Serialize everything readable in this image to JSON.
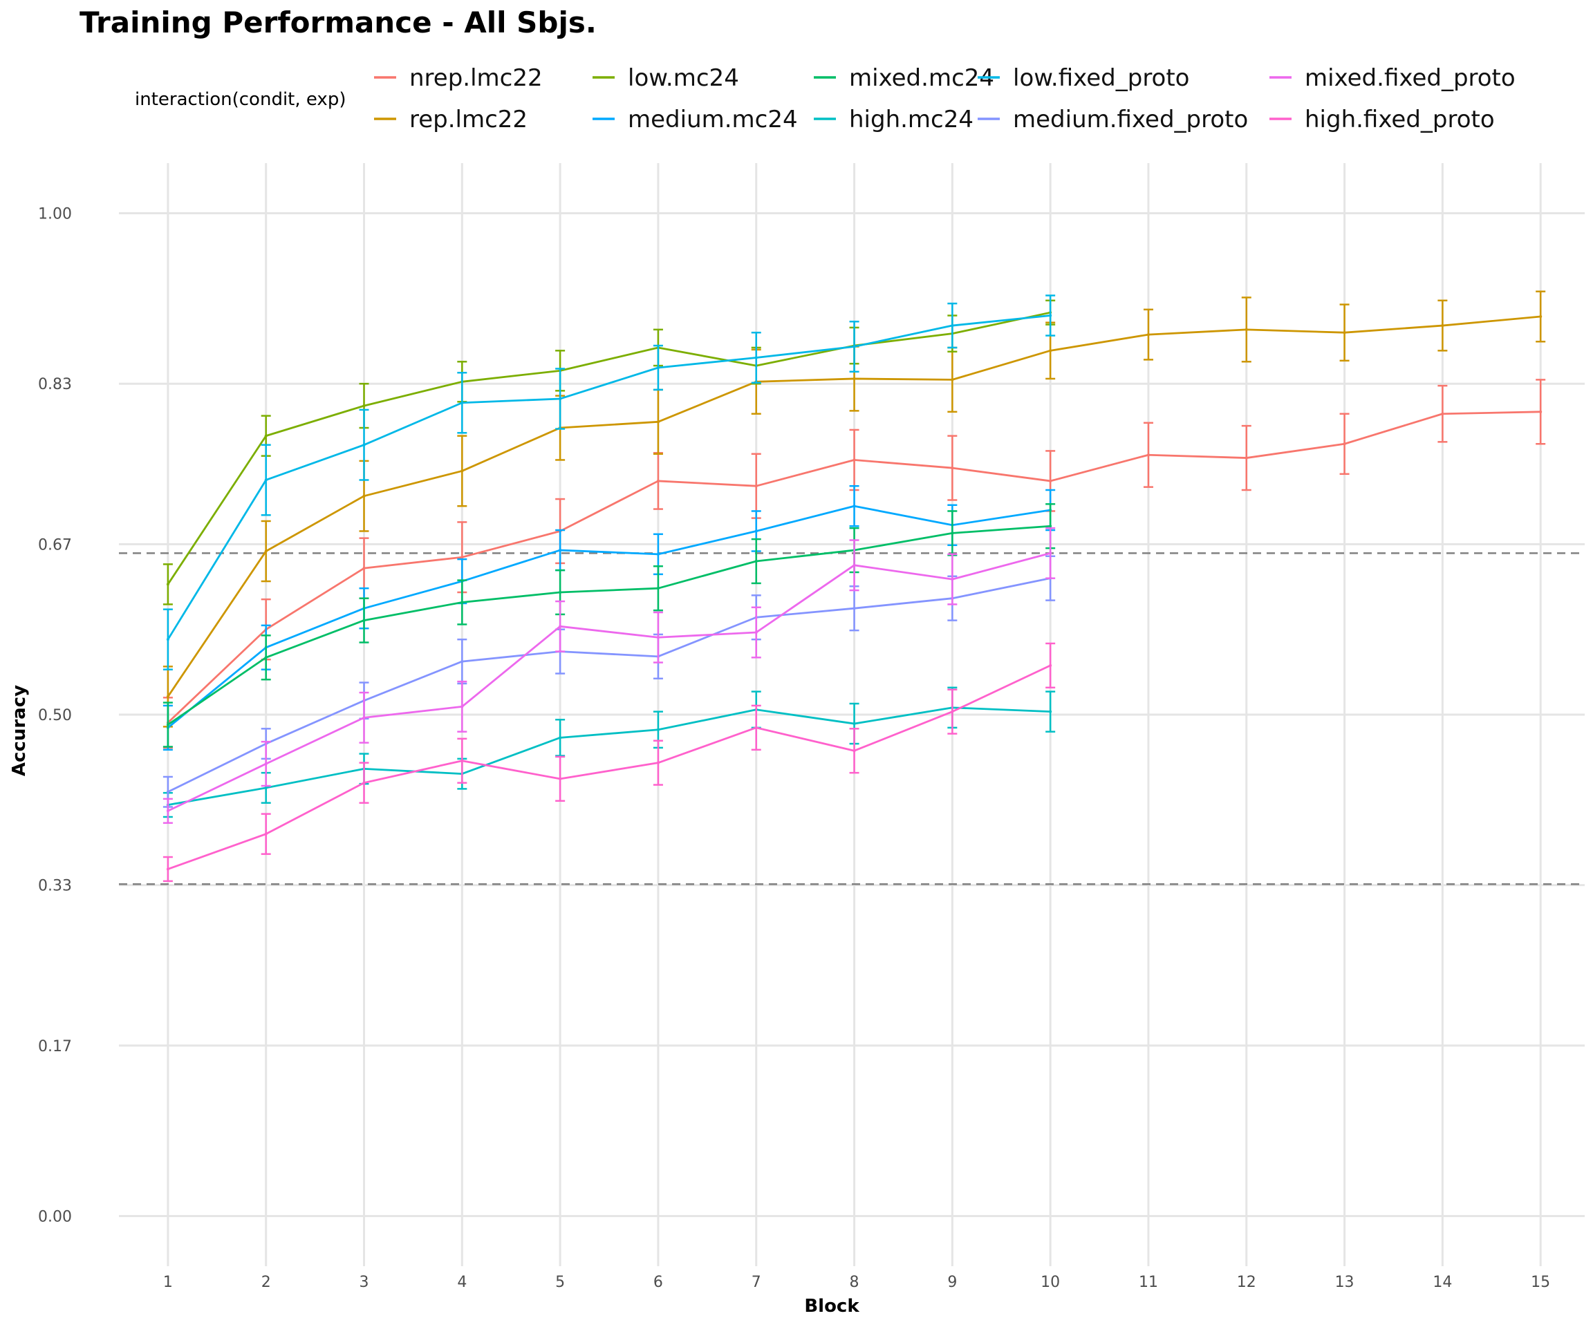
{
  "chart_data": {
    "type": "line",
    "title": "Training Performance - All Sbjs.",
    "xlabel": "Block",
    "ylabel": "Accuracy",
    "xlim": [
      0.5,
      15.45
    ],
    "ylim": [
      -0.05,
      1.05
    ],
    "x_ticks": [
      1,
      2,
      3,
      4,
      5,
      6,
      7,
      8,
      9,
      10,
      11,
      12,
      13,
      14,
      15
    ],
    "y_ticks": [
      0.0,
      0.17,
      0.33,
      0.5,
      0.67,
      0.83,
      1.0
    ],
    "y_tick_labels": [
      "0.00",
      "0.17",
      "0.33",
      "0.50",
      "0.67",
      "0.83",
      "1.00"
    ],
    "reference_lines": [
      0.661,
      0.331
    ],
    "grid": true,
    "legend": {
      "title": "interaction(condit, exp)",
      "position": "top"
    },
    "series": [
      {
        "name": "nrep.lmc22",
        "color": "#F8766D",
        "x": [
          1,
          2,
          3,
          4,
          5,
          6,
          7,
          8,
          9,
          10,
          11,
          12,
          13,
          14,
          15
        ],
        "y": [
          0.492,
          0.585,
          0.646,
          0.657,
          0.683,
          0.733,
          0.728,
          0.754,
          0.746,
          0.733,
          0.759,
          0.756,
          0.77,
          0.8,
          0.802
        ],
        "err": [
          0.025,
          0.03,
          0.03,
          0.035,
          0.032,
          0.028,
          0.032,
          0.03,
          0.032,
          0.03,
          0.032,
          0.032,
          0.03,
          0.028,
          0.032
        ]
      },
      {
        "name": "rep.lmc22",
        "color": "#CD9600",
        "x": [
          1,
          2,
          3,
          4,
          5,
          6,
          7,
          8,
          9,
          10,
          11,
          12,
          13,
          14,
          15
        ],
        "y": [
          0.518,
          0.663,
          0.718,
          0.743,
          0.786,
          0.792,
          0.832,
          0.835,
          0.834,
          0.863,
          0.879,
          0.884,
          0.881,
          0.888,
          0.897
        ],
        "err": [
          0.03,
          0.03,
          0.035,
          0.035,
          0.032,
          0.032,
          0.032,
          0.032,
          0.032,
          0.028,
          0.025,
          0.032,
          0.028,
          0.025,
          0.025
        ]
      },
      {
        "name": "low.mc24",
        "color": "#7CAE00",
        "x": [
          1,
          2,
          3,
          4,
          5,
          6,
          7,
          8,
          9,
          10
        ],
        "y": [
          0.63,
          0.778,
          0.808,
          0.832,
          0.843,
          0.866,
          0.848,
          0.868,
          0.88,
          0.901
        ],
        "err": [
          0.02,
          0.02,
          0.022,
          0.02,
          0.02,
          0.018,
          0.018,
          0.018,
          0.018,
          0.012
        ]
      },
      {
        "name": "medium.mc24",
        "color": "#00A9FF",
        "x": [
          1,
          2,
          3,
          4,
          5,
          6,
          7,
          8,
          9,
          10
        ],
        "y": [
          0.487,
          0.567,
          0.606,
          0.633,
          0.664,
          0.66,
          0.683,
          0.708,
          0.689,
          0.704
        ],
        "err": [
          0.022,
          0.022,
          0.02,
          0.022,
          0.02,
          0.02,
          0.02,
          0.02,
          0.02,
          0.02
        ]
      },
      {
        "name": "mixed.mc24",
        "color": "#00BE67",
        "x": [
          1,
          2,
          3,
          4,
          5,
          6,
          7,
          8,
          9,
          10
        ],
        "y": [
          0.49,
          0.557,
          0.594,
          0.612,
          0.622,
          0.626,
          0.653,
          0.664,
          0.681,
          0.688
        ],
        "err": [
          0.022,
          0.022,
          0.022,
          0.022,
          0.022,
          0.022,
          0.022,
          0.022,
          0.022,
          0.022
        ]
      },
      {
        "name": "high.mc24",
        "color": "#00BFC4",
        "x": [
          1,
          2,
          3,
          4,
          5,
          6,
          7,
          8,
          9,
          10
        ],
        "y": [
          0.41,
          0.427,
          0.446,
          0.441,
          0.477,
          0.485,
          0.505,
          0.491,
          0.507,
          0.503
        ],
        "err": [
          0.012,
          0.015,
          0.015,
          0.015,
          0.018,
          0.018,
          0.018,
          0.02,
          0.02,
          0.02
        ]
      },
      {
        "name": "low.fixed_proto",
        "color": "#00B8E7",
        "x": [
          1,
          2,
          3,
          4,
          5,
          6,
          7,
          8,
          9,
          10
        ],
        "y": [
          0.575,
          0.734,
          0.769,
          0.811,
          0.815,
          0.846,
          0.856,
          0.867,
          0.888,
          0.898
        ],
        "err": [
          0.03,
          0.035,
          0.035,
          0.03,
          0.03,
          0.022,
          0.025,
          0.025,
          0.022,
          0.02
        ]
      },
      {
        "name": "medium.fixed_proto",
        "color": "#8494FF",
        "x": [
          1,
          2,
          3,
          4,
          5,
          6,
          7,
          8,
          9,
          10
        ],
        "y": [
          0.423,
          0.471,
          0.514,
          0.553,
          0.563,
          0.558,
          0.597,
          0.606,
          0.616,
          0.636
        ],
        "err": [
          0.015,
          0.015,
          0.018,
          0.022,
          0.022,
          0.022,
          0.022,
          0.022,
          0.022,
          0.022
        ]
      },
      {
        "name": "mixed.fixed_proto",
        "color": "#ED68ED",
        "x": [
          1,
          2,
          3,
          4,
          5,
          6,
          7,
          8,
          9,
          10
        ],
        "y": [
          0.404,
          0.451,
          0.497,
          0.508,
          0.588,
          0.577,
          0.582,
          0.649,
          0.635,
          0.661
        ],
        "err": [
          0.012,
          0.022,
          0.025,
          0.025,
          0.025,
          0.025,
          0.025,
          0.025,
          0.025,
          0.025
        ]
      },
      {
        "name": "high.fixed_proto",
        "color": "#FF61CC",
        "x": [
          1,
          2,
          3,
          4,
          5,
          6,
          7,
          8,
          9,
          10
        ],
        "y": [
          0.346,
          0.381,
          0.432,
          0.454,
          0.436,
          0.452,
          0.487,
          0.464,
          0.503,
          0.549
        ],
        "err": [
          0.012,
          0.02,
          0.02,
          0.022,
          0.022,
          0.022,
          0.022,
          0.022,
          0.022,
          0.022
        ]
      }
    ]
  }
}
